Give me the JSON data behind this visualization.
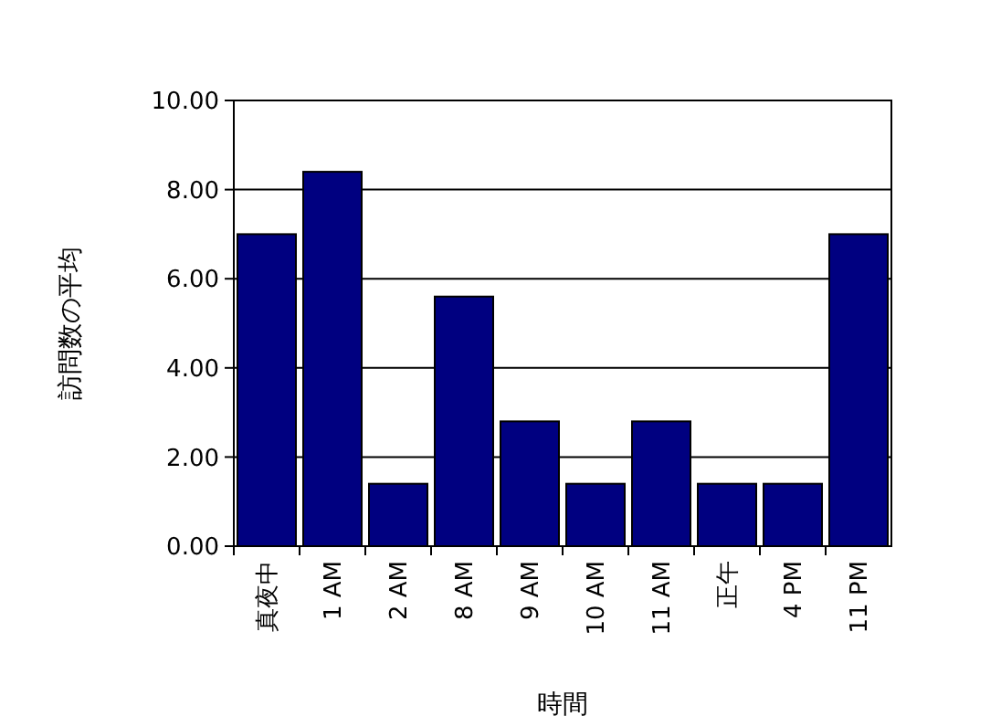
{
  "chart_data": {
    "type": "bar",
    "xlabel": "時間",
    "ylabel": "訪問数の平均",
    "categories": [
      "真夜中",
      "1 AM",
      "2 AM",
      "8 AM",
      "9 AM",
      "10 AM",
      "11 AM",
      "正午",
      "4 PM",
      "11 PM"
    ],
    "values": [
      7.0,
      8.4,
      1.4,
      5.6,
      2.8,
      1.4,
      2.8,
      1.4,
      1.4,
      7.0
    ],
    "color": "#000080",
    "ylim": [
      0,
      10
    ],
    "yticks": [
      {
        "value": 0,
        "label": "0.00"
      },
      {
        "value": 2,
        "label": "2.00"
      },
      {
        "value": 4,
        "label": "4.00"
      },
      {
        "value": 6,
        "label": "6.00"
      },
      {
        "value": 8,
        "label": "8.00"
      },
      {
        "value": 10,
        "label": "10.00"
      }
    ],
    "grid": "y"
  }
}
